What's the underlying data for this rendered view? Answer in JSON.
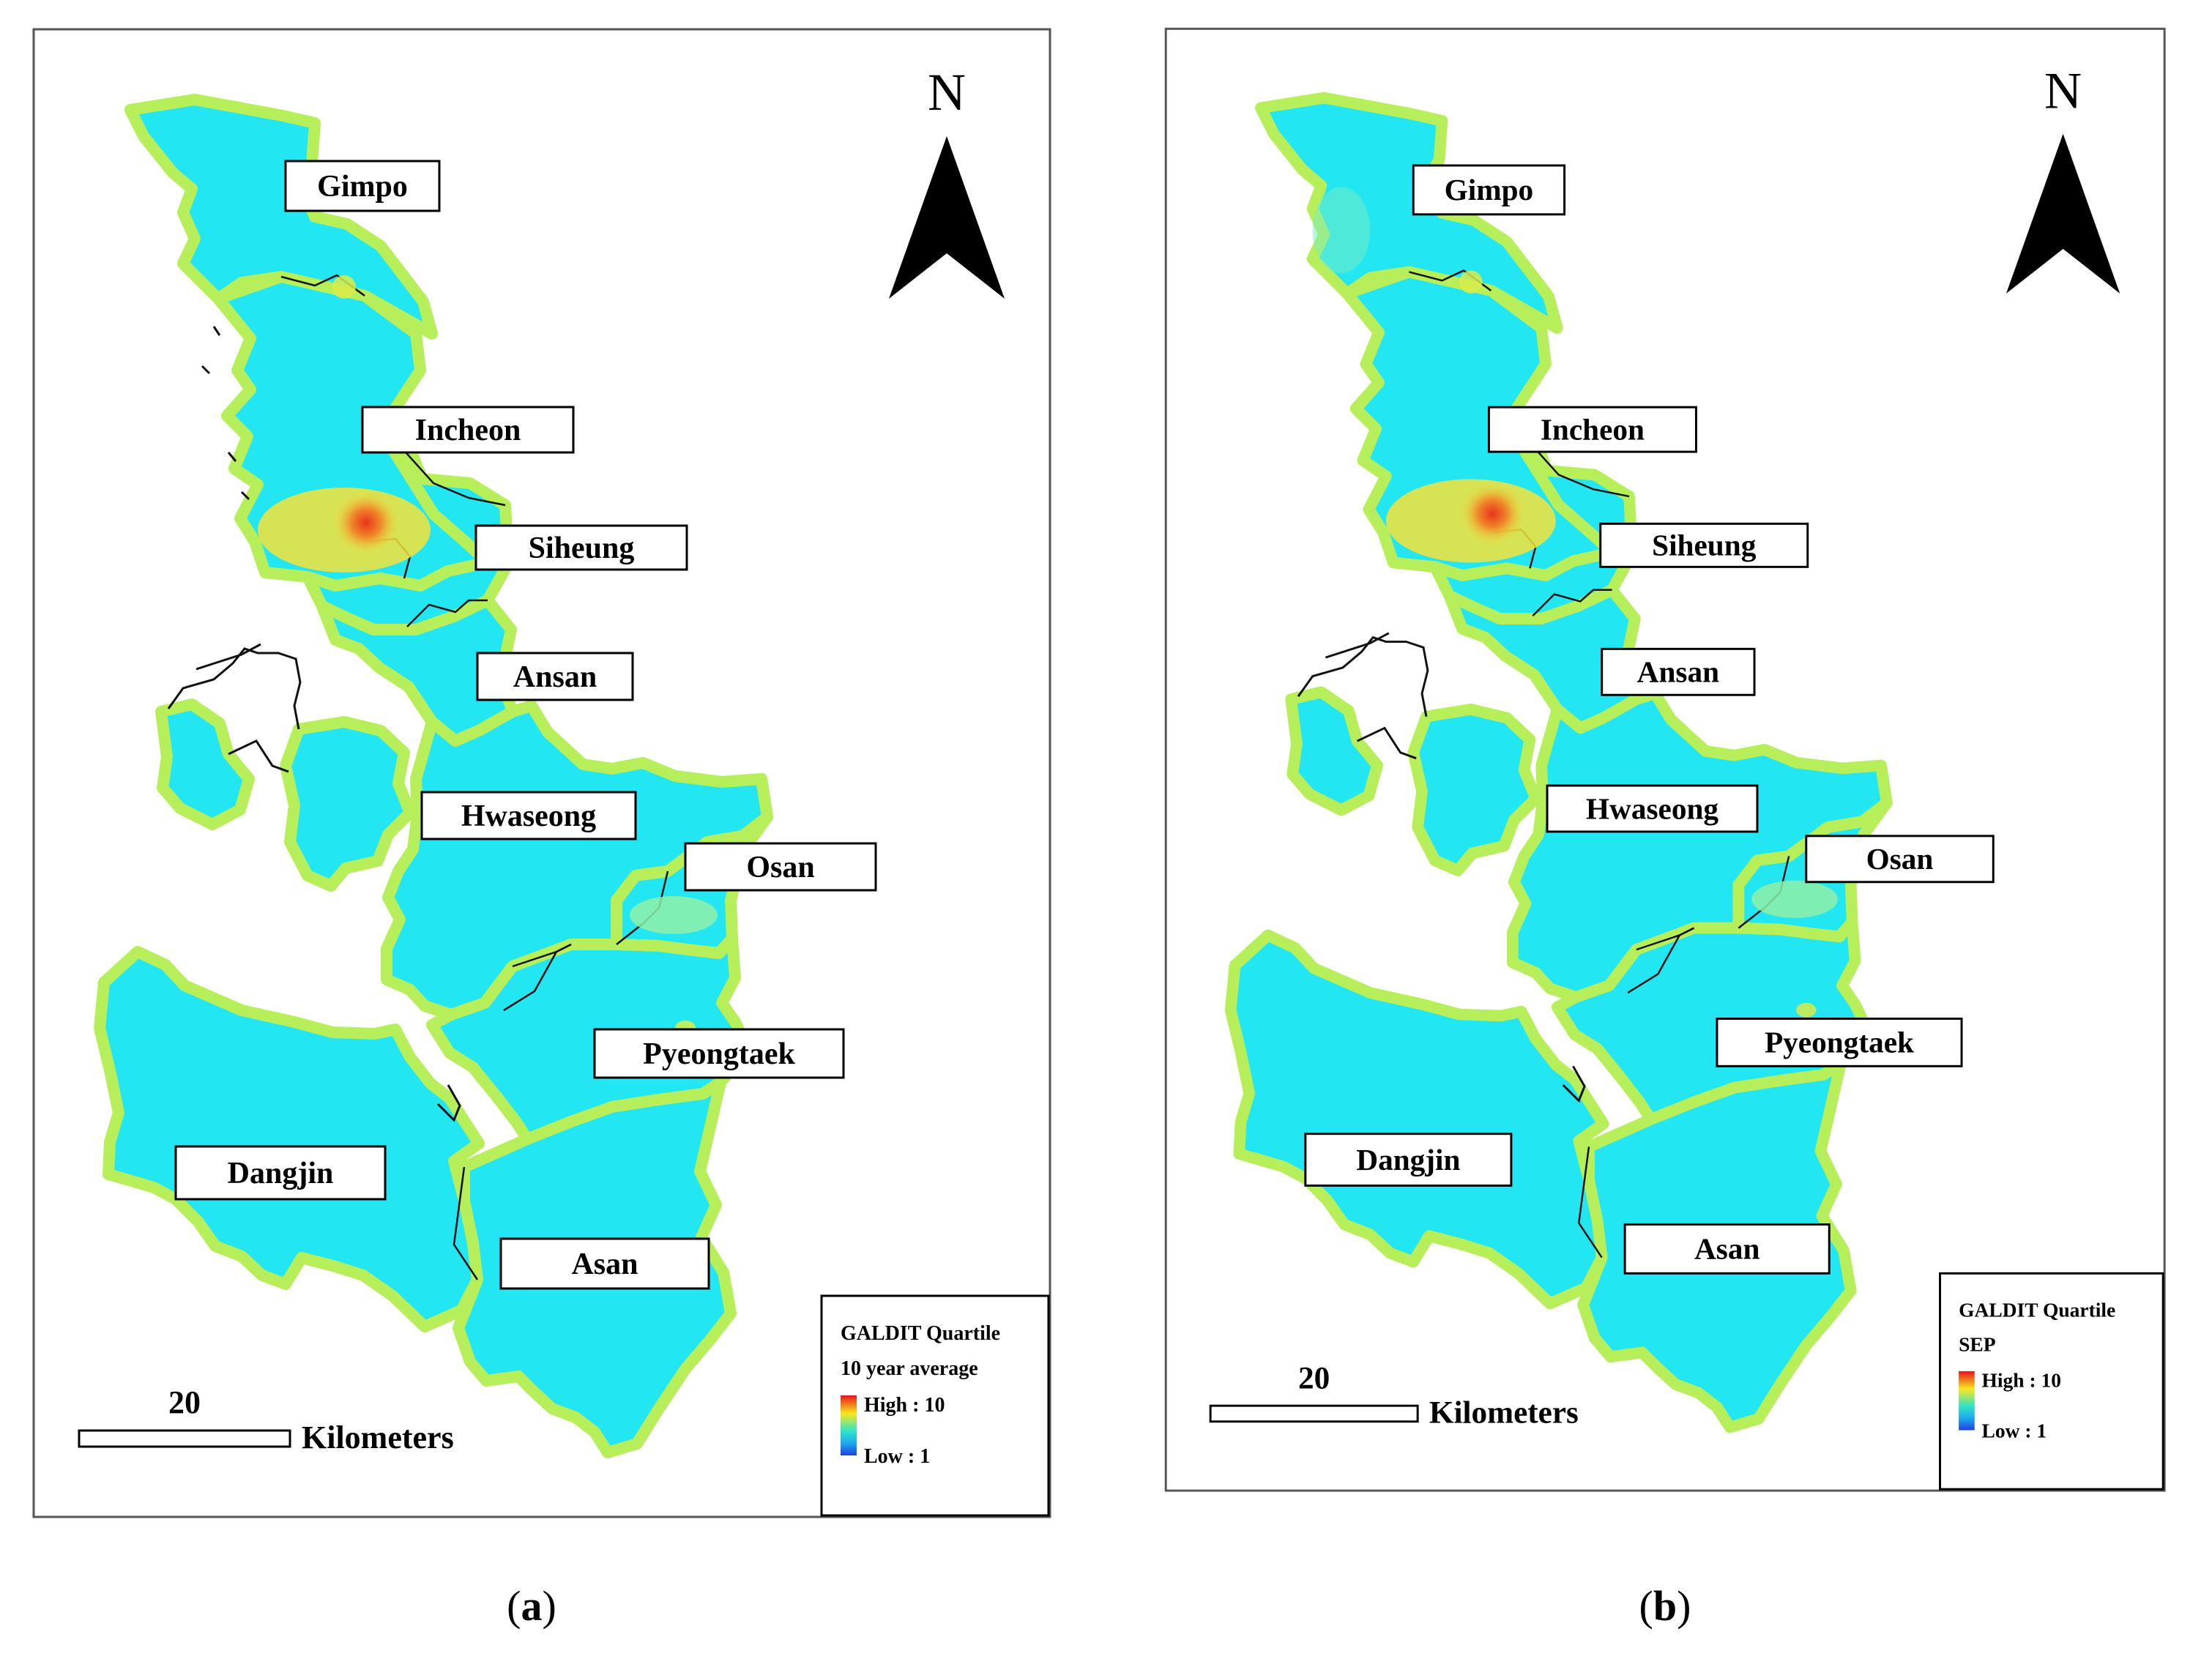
{
  "panels": [
    {
      "id": "a",
      "caption_letter": "a",
      "north_label": "N",
      "scale_value": "20",
      "scale_unit": "Kilometers",
      "legend": {
        "title": "GALDIT Quartile",
        "subtitle": "10 year average",
        "high": "High : 10",
        "low": "Low : 1"
      },
      "places": [
        "Gimpo",
        "Incheon",
        "Siheung",
        "Ansan",
        "Hwaseong",
        "Osan",
        "Pyeongtaek",
        "Dangjin",
        "Asan"
      ]
    },
    {
      "id": "b",
      "caption_letter": "b",
      "north_label": "N",
      "scale_value": "20",
      "scale_unit": "Kilometers",
      "legend": {
        "title": "GALDIT Quartile",
        "subtitle": "SEP",
        "high": "High : 10",
        "low": "Low : 1"
      },
      "places": [
        "Gimpo",
        "Incheon",
        "Siheung",
        "Ansan",
        "Hwaseong",
        "Osan",
        "Pyeongtaek",
        "Dangjin",
        "Asan"
      ]
    }
  ],
  "colors": {
    "region_fill": "#22e6f2",
    "coast_band": "#b7ef5a",
    "hotspot_mid": "#f4e23a",
    "hotspot_core": "#e8341c",
    "ramp": [
      "#e8141c",
      "#f7e81e",
      "#2de3c8",
      "#1ea8f0",
      "#2040e0"
    ]
  }
}
